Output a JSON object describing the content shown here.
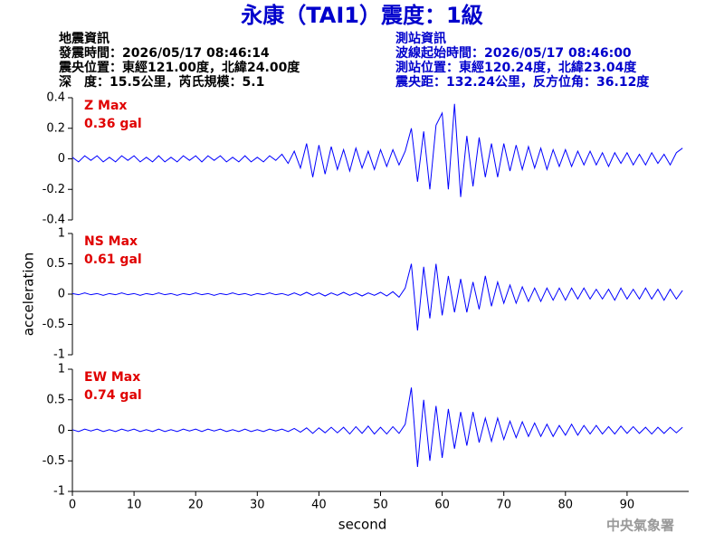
{
  "header": {
    "title": "永康（TAI1）震度：1級",
    "left": [
      "地震資訊",
      "發震時間：2026/05/17 08:46:14",
      "震央位置：東經121.00度，北緯24.00度",
      "深　度：15.5公里，芮氏規模：5.1"
    ],
    "right": [
      "測站資訊",
      "波線起始時間：2026/05/17 08:46:00",
      "測站位置：東經120.24度，北緯23.04度",
      "震央距：132.24公里，反方位角：36.12度"
    ]
  },
  "footer": "中央氣象署",
  "chart_data": [
    {
      "type": "line",
      "annotations": [
        "Z Max",
        "0.36 gal"
      ],
      "color": "#0000ff",
      "xlim": [
        0,
        100
      ],
      "ylim": [
        -0.4,
        0.4
      ],
      "yticks": [
        0.4,
        0.2,
        0,
        -0.2,
        -0.4
      ],
      "x": [
        0,
        1,
        2,
        3,
        4,
        5,
        6,
        7,
        8,
        9,
        10,
        11,
        12,
        13,
        14,
        15,
        16,
        17,
        18,
        19,
        20,
        21,
        22,
        23,
        24,
        25,
        26,
        27,
        28,
        29,
        30,
        31,
        32,
        33,
        34,
        35,
        36,
        37,
        38,
        39,
        40,
        41,
        42,
        43,
        44,
        45,
        46,
        47,
        48,
        49,
        50,
        51,
        52,
        53,
        54,
        55,
        56,
        57,
        58,
        59,
        60,
        61,
        62,
        63,
        64,
        65,
        66,
        67,
        68,
        69,
        70,
        71,
        72,
        73,
        74,
        75,
        76,
        77,
        78,
        79,
        80,
        81,
        82,
        83,
        84,
        85,
        86,
        87,
        88,
        89,
        90,
        91,
        92,
        93,
        94,
        95,
        96,
        97,
        98,
        99
      ],
      "values": [
        0.01,
        -0.02,
        0.02,
        -0.01,
        0.02,
        -0.02,
        0.01,
        -0.02,
        0.02,
        -0.01,
        0.02,
        -0.02,
        0.01,
        -0.02,
        0.02,
        -0.02,
        0.01,
        -0.02,
        0.02,
        -0.01,
        0.02,
        -0.02,
        0.02,
        -0.01,
        0.02,
        -0.02,
        0.01,
        -0.02,
        0.02,
        -0.02,
        0.01,
        -0.02,
        0.02,
        -0.01,
        0.03,
        -0.03,
        0.05,
        -0.06,
        0.1,
        -0.12,
        0.09,
        -0.1,
        0.08,
        -0.07,
        0.06,
        -0.08,
        0.07,
        -0.06,
        0.05,
        -0.07,
        0.06,
        -0.05,
        0.06,
        -0.04,
        0.05,
        0.2,
        -0.15,
        0.18,
        -0.2,
        0.22,
        0.3,
        -0.2,
        0.36,
        -0.25,
        0.15,
        -0.18,
        0.14,
        -0.12,
        0.1,
        -0.12,
        0.1,
        -0.08,
        0.09,
        -0.07,
        0.08,
        -0.06,
        0.07,
        -0.07,
        0.06,
        -0.05,
        0.06,
        -0.05,
        0.05,
        -0.04,
        0.05,
        -0.04,
        0.04,
        -0.05,
        0.04,
        -0.03,
        0.04,
        -0.04,
        0.03,
        -0.04,
        0.04,
        -0.03,
        0.03,
        -0.04,
        0.04,
        0.07
      ]
    },
    {
      "type": "line",
      "annotations": [
        "NS Max",
        "0.61 gal"
      ],
      "color": "#0000ff",
      "ylabel": "acceleration",
      "xlim": [
        0,
        100
      ],
      "ylim": [
        -1,
        1
      ],
      "yticks": [
        1,
        0.5,
        0,
        -0.5,
        -1
      ],
      "x": [
        0,
        1,
        2,
        3,
        4,
        5,
        6,
        7,
        8,
        9,
        10,
        11,
        12,
        13,
        14,
        15,
        16,
        17,
        18,
        19,
        20,
        21,
        22,
        23,
        24,
        25,
        26,
        27,
        28,
        29,
        30,
        31,
        32,
        33,
        34,
        35,
        36,
        37,
        38,
        39,
        40,
        41,
        42,
        43,
        44,
        45,
        46,
        47,
        48,
        49,
        50,
        51,
        52,
        53,
        54,
        55,
        56,
        57,
        58,
        59,
        60,
        61,
        62,
        63,
        64,
        65,
        66,
        67,
        68,
        69,
        70,
        71,
        72,
        73,
        74,
        75,
        76,
        77,
        78,
        79,
        80,
        81,
        82,
        83,
        84,
        85,
        86,
        87,
        88,
        89,
        90,
        91,
        92,
        93,
        94,
        95,
        96,
        97,
        98,
        99
      ],
      "values": [
        0.01,
        -0.01,
        0.02,
        -0.01,
        0.01,
        -0.02,
        0.01,
        -0.01,
        0.02,
        -0.01,
        0.01,
        -0.02,
        0.01,
        -0.01,
        0.02,
        -0.01,
        0.01,
        -0.02,
        0.01,
        -0.01,
        0.02,
        -0.01,
        0.01,
        -0.02,
        0.01,
        -0.01,
        0.02,
        -0.01,
        0.01,
        -0.02,
        0.01,
        -0.01,
        0.02,
        -0.01,
        0.01,
        -0.02,
        0.02,
        -0.02,
        0.03,
        -0.02,
        0.02,
        -0.03,
        0.02,
        -0.02,
        0.03,
        -0.02,
        0.02,
        -0.03,
        0.02,
        -0.02,
        0.03,
        -0.03,
        0.04,
        -0.05,
        0.1,
        0.5,
        -0.6,
        0.45,
        -0.4,
        0.5,
        -0.35,
        0.3,
        -0.3,
        0.25,
        -0.3,
        0.2,
        -0.25,
        0.3,
        -0.2,
        0.2,
        -0.15,
        0.15,
        -0.15,
        0.12,
        -0.12,
        0.1,
        -0.12,
        0.1,
        -0.1,
        0.1,
        -0.1,
        0.1,
        -0.08,
        0.1,
        -0.08,
        0.08,
        -0.08,
        0.08,
        -0.1,
        0.1,
        -0.08,
        0.08,
        -0.08,
        0.1,
        -0.08,
        0.08,
        -0.1,
        0.08,
        -0.08,
        0.06
      ]
    },
    {
      "type": "line",
      "annotations": [
        "EW Max",
        "0.74 gal"
      ],
      "color": "#0000ff",
      "xlabel": "second",
      "xlim": [
        0,
        100
      ],
      "xticks": [
        0,
        10,
        20,
        30,
        40,
        50,
        60,
        70,
        80,
        90
      ],
      "ylim": [
        -1,
        1
      ],
      "yticks": [
        1,
        0.5,
        0,
        -0.5,
        -1
      ],
      "x": [
        0,
        1,
        2,
        3,
        4,
        5,
        6,
        7,
        8,
        9,
        10,
        11,
        12,
        13,
        14,
        15,
        16,
        17,
        18,
        19,
        20,
        21,
        22,
        23,
        24,
        25,
        26,
        27,
        28,
        29,
        30,
        31,
        32,
        33,
        34,
        35,
        36,
        37,
        38,
        39,
        40,
        41,
        42,
        43,
        44,
        45,
        46,
        47,
        48,
        49,
        50,
        51,
        52,
        53,
        54,
        55,
        56,
        57,
        58,
        59,
        60,
        61,
        62,
        63,
        64,
        65,
        66,
        67,
        68,
        69,
        70,
        71,
        72,
        73,
        74,
        75,
        76,
        77,
        78,
        79,
        80,
        81,
        82,
        83,
        84,
        85,
        86,
        87,
        88,
        89,
        90,
        91,
        92,
        93,
        94,
        95,
        96,
        97,
        98,
        99
      ],
      "values": [
        0.01,
        -0.02,
        0.02,
        -0.01,
        0.02,
        -0.02,
        0.01,
        -0.02,
        0.02,
        -0.01,
        0.02,
        -0.02,
        0.01,
        -0.02,
        0.02,
        -0.02,
        0.01,
        -0.02,
        0.02,
        -0.01,
        0.02,
        -0.02,
        0.02,
        -0.01,
        0.02,
        -0.02,
        0.01,
        -0.02,
        0.02,
        -0.02,
        0.01,
        -0.02,
        0.02,
        -0.01,
        0.02,
        -0.02,
        0.03,
        -0.03,
        0.04,
        -0.05,
        0.04,
        -0.04,
        0.05,
        -0.04,
        0.05,
        -0.06,
        0.06,
        -0.05,
        0.07,
        -0.06,
        0.05,
        -0.06,
        0.06,
        -0.05,
        0.1,
        0.7,
        -0.6,
        0.5,
        -0.5,
        0.4,
        -0.45,
        0.35,
        -0.3,
        0.3,
        -0.25,
        0.3,
        -0.2,
        0.2,
        -0.18,
        0.2,
        -0.15,
        0.15,
        -0.12,
        0.14,
        -0.1,
        0.12,
        -0.1,
        0.1,
        -0.1,
        0.08,
        -0.08,
        0.1,
        -0.08,
        0.08,
        -0.06,
        0.08,
        -0.06,
        0.06,
        -0.06,
        0.07,
        -0.05,
        0.06,
        -0.05,
        0.05,
        -0.06,
        0.05,
        -0.05,
        0.05,
        -0.04,
        0.05
      ]
    }
  ]
}
